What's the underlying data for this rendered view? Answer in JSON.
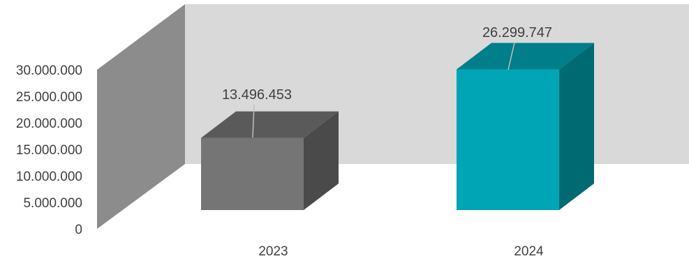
{
  "chart_data": {
    "type": "bar",
    "style": "3d-column",
    "categories": [
      "2023",
      "2024"
    ],
    "values": [
      13496453,
      26299747
    ],
    "data_labels": [
      "13.496.453",
      "26.299.747"
    ],
    "y_ticks": [
      0,
      5000000,
      10000000,
      15000000,
      20000000,
      25000000,
      30000000
    ],
    "y_tick_labels": [
      "0",
      "5.000.000",
      "10.000.000",
      "15.000.000",
      "20.000.000",
      "25.000.000",
      "30.000.000"
    ],
    "ylim": [
      0,
      30000000
    ],
    "grid": false,
    "legend": "none",
    "bar_colors": [
      {
        "front": "#757575",
        "top": "#5a5a5a",
        "side": "#4a4a4a"
      },
      {
        "front": "#00a5b5",
        "top": "#007e89",
        "side": "#006a73"
      }
    ],
    "wall_colors": {
      "back": "#d9d9d9",
      "side": "#8c8c8c"
    },
    "label_color": "#404040"
  }
}
